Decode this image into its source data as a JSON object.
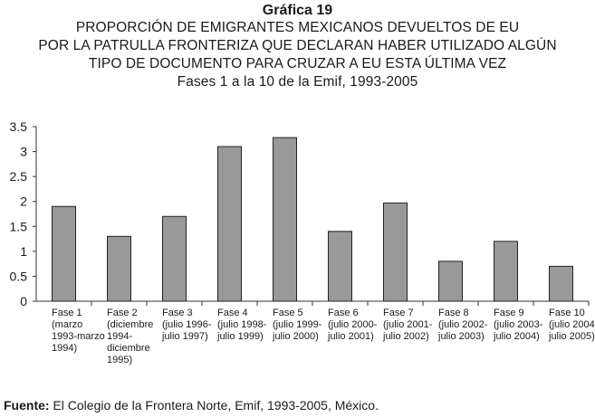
{
  "heading": {
    "number": "Gráfica 19",
    "line1": "PROPORCIÓN DE EMIGRANTES MEXICANOS DEVUELTOS DE EU",
    "line2": "POR LA PATRULLA FRONTERIZA QUE DECLARAN HABER UTILIZADO ALGÚN",
    "line3": "TIPO DE DOCUMENTO PARA CRUZAR A EU ESTA ÚLTIMA VEZ",
    "line4": "Fases 1 a la 10 de la Emif, 1993-2005"
  },
  "chart_data": {
    "type": "bar",
    "categories": [
      [
        "Fase 1",
        "(marzo",
        "1993-marzo",
        "1994)"
      ],
      [
        "Fase 2",
        "(diciembre",
        "1994-",
        "diciembre",
        "1995)"
      ],
      [
        "Fase 3",
        "(julio 1996-",
        "julio 1997)"
      ],
      [
        "Fase 4",
        "(julio 1998-",
        "julio 1999)"
      ],
      [
        "Fase 5",
        "(julio 1999-",
        "julio 2000)"
      ],
      [
        "Fase 6",
        "(julio 2000-",
        "julio 2001)"
      ],
      [
        "Fase 7",
        "(julio 2001-",
        "julio 2002)"
      ],
      [
        "Fase 8",
        "(julio 2002-",
        "julio 2003)"
      ],
      [
        "Fase 9",
        "(julio 2003-",
        "julio 2004)"
      ],
      [
        "Fase 10",
        "(julio 2004-",
        "julio 2005)"
      ]
    ],
    "values": [
      1.9,
      1.3,
      1.7,
      3.1,
      3.28,
      1.4,
      1.97,
      0.8,
      1.2,
      0.7
    ],
    "yticks": [
      "0",
      "0.5",
      "1",
      "1.5",
      "2",
      "2.5",
      "3",
      "3.5"
    ],
    "ylim": [
      0,
      3.5
    ],
    "grid": false,
    "bar_color": "#999999"
  },
  "source": {
    "label": "Fuente:",
    "text": " El Colegio de la Frontera Norte, Emif, 1993-2005, México."
  }
}
